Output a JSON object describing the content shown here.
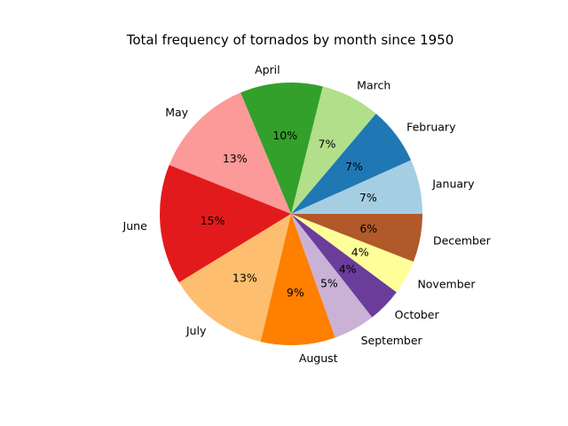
{
  "chart_data": {
    "type": "pie",
    "title": "Total frequency of tornados by month since 1950",
    "start_angle_deg": 0,
    "direction": "counterclockwise",
    "slices": [
      {
        "label": "January",
        "value": 6.8,
        "pct_label": "7%",
        "color": "#a6cee3"
      },
      {
        "label": "February",
        "value": 7.2,
        "pct_label": "7%",
        "color": "#1f78b4"
      },
      {
        "label": "March",
        "value": 7.4,
        "pct_label": "7%",
        "color": "#b2df8a"
      },
      {
        "label": "April",
        "value": 10.3,
        "pct_label": "10%",
        "color": "#33a02c"
      },
      {
        "label": "May",
        "value": 12.8,
        "pct_label": "13%",
        "color": "#fb9a99"
      },
      {
        "label": "June",
        "value": 15.0,
        "pct_label": "15%",
        "color": "#e31a1c"
      },
      {
        "label": "July",
        "value": 12.7,
        "pct_label": "13%",
        "color": "#fdbf6f"
      },
      {
        "label": "August",
        "value": 9.3,
        "pct_label": "9%",
        "color": "#ff7f00"
      },
      {
        "label": "September",
        "value": 5.2,
        "pct_label": "5%",
        "color": "#cab2d6"
      },
      {
        "label": "October",
        "value": 4.3,
        "pct_label": "4%",
        "color": "#6a3d9a"
      },
      {
        "label": "November",
        "value": 4.3,
        "pct_label": "4%",
        "color": "#ffff99"
      },
      {
        "label": "December",
        "value": 6.0,
        "pct_label": "6%",
        "color": "#b15928"
      }
    ]
  }
}
